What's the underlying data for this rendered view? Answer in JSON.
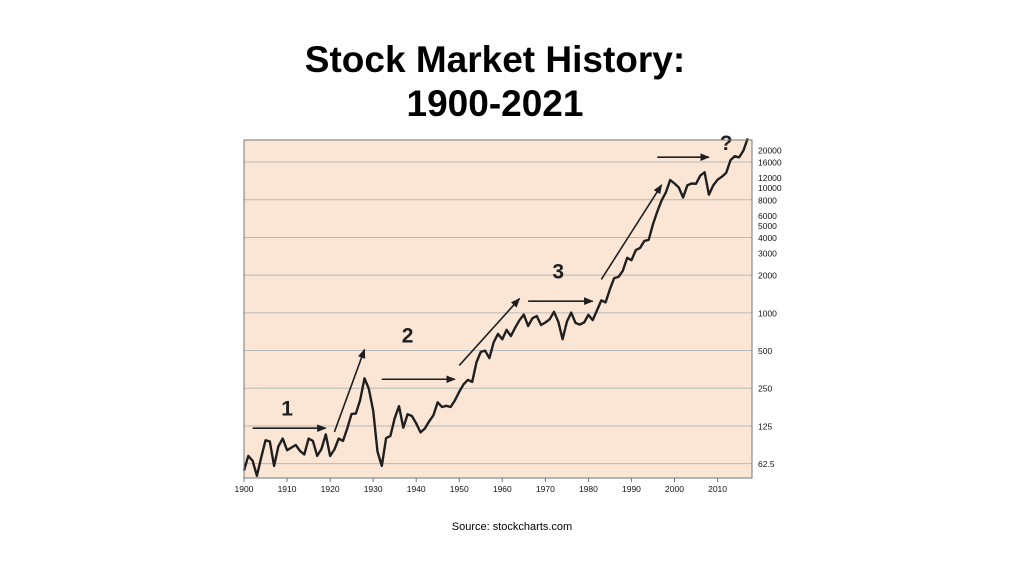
{
  "slide": {
    "title_line1": "Stock Market History:",
    "title_line2": "1900-2021",
    "source": "Source: stockcharts.com"
  },
  "colors": {
    "plot_background": "#fbe6d6",
    "gridline": "#b8b8b8",
    "series_line": "#1f1f1f",
    "frame": "#777777"
  },
  "chart_data": {
    "type": "line",
    "title": "",
    "xlabel": "",
    "ylabel": "",
    "y_scale": "log",
    "grid": true,
    "xlim": [
      1900,
      2018
    ],
    "ylim": [
      48,
      24000
    ],
    "x_ticks": [
      1900,
      1910,
      1920,
      1930,
      1940,
      1950,
      1960,
      1970,
      1980,
      1990,
      2000,
      2010
    ],
    "x_tick_labels": [
      "1900",
      "1910",
      "1920",
      "1930",
      "1940",
      "1950",
      "1960",
      "1970",
      "1980",
      "1990",
      "2000",
      "2010"
    ],
    "y_ticks": [
      62.5,
      125,
      250,
      500,
      1000,
      2000,
      3000,
      4000,
      5000,
      6000,
      8000,
      10000,
      12000,
      16000,
      20000
    ],
    "y_tick_labels": [
      "62.5",
      "125",
      "250",
      "500",
      "1000",
      "2000",
      "3000",
      "4000",
      "5000",
      "6000",
      "8000",
      "10000",
      "12000",
      "16000",
      "20000"
    ],
    "gridlines_y": [
      62.5,
      125,
      250,
      500,
      1000,
      2000,
      4000,
      8000,
      16000
    ],
    "series": [
      {
        "values": [
          [
            1900,
            55
          ],
          [
            1901,
            72
          ],
          [
            1902,
            66
          ],
          [
            1903,
            50
          ],
          [
            1904,
            70
          ],
          [
            1905,
            96
          ],
          [
            1906,
            94
          ],
          [
            1907,
            60
          ],
          [
            1908,
            86
          ],
          [
            1909,
            99
          ],
          [
            1910,
            80
          ],
          [
            1911,
            84
          ],
          [
            1912,
            88
          ],
          [
            1913,
            79
          ],
          [
            1914,
            74
          ],
          [
            1915,
            99
          ],
          [
            1916,
            95
          ],
          [
            1917,
            72
          ],
          [
            1918,
            82
          ],
          [
            1919,
            107
          ],
          [
            1920,
            72
          ],
          [
            1921,
            81
          ],
          [
            1922,
            99
          ],
          [
            1923,
            95
          ],
          [
            1924,
            120
          ],
          [
            1925,
            156
          ],
          [
            1926,
            157
          ],
          [
            1927,
            202
          ],
          [
            1928,
            300
          ],
          [
            1929,
            248
          ],
          [
            1930,
            165
          ],
          [
            1931,
            78
          ],
          [
            1932,
            60
          ],
          [
            1933,
            100
          ],
          [
            1934,
            104
          ],
          [
            1935,
            144
          ],
          [
            1936,
            180
          ],
          [
            1937,
            121
          ],
          [
            1938,
            155
          ],
          [
            1939,
            150
          ],
          [
            1940,
            131
          ],
          [
            1941,
            111
          ],
          [
            1942,
            119
          ],
          [
            1943,
            136
          ],
          [
            1944,
            152
          ],
          [
            1945,
            193
          ],
          [
            1946,
            177
          ],
          [
            1947,
            181
          ],
          [
            1948,
            177
          ],
          [
            1949,
            200
          ],
          [
            1950,
            235
          ],
          [
            1951,
            269
          ],
          [
            1952,
            292
          ],
          [
            1953,
            281
          ],
          [
            1954,
            404
          ],
          [
            1955,
            488
          ],
          [
            1956,
            499
          ],
          [
            1957,
            435
          ],
          [
            1958,
            583
          ],
          [
            1959,
            679
          ],
          [
            1960,
            615
          ],
          [
            1961,
            731
          ],
          [
            1962,
            652
          ],
          [
            1963,
            762
          ],
          [
            1964,
            874
          ],
          [
            1965,
            969
          ],
          [
            1966,
            785
          ],
          [
            1967,
            905
          ],
          [
            1968,
            943
          ],
          [
            1969,
            800
          ],
          [
            1970,
            838
          ],
          [
            1971,
            890
          ],
          [
            1972,
            1020
          ],
          [
            1973,
            850
          ],
          [
            1974,
            616
          ],
          [
            1975,
            852
          ],
          [
            1976,
            1004
          ],
          [
            1977,
            831
          ],
          [
            1978,
            805
          ],
          [
            1979,
            838
          ],
          [
            1980,
            963
          ],
          [
            1981,
            875
          ],
          [
            1982,
            1046
          ],
          [
            1983,
            1258
          ],
          [
            1984,
            1211
          ],
          [
            1985,
            1546
          ],
          [
            1986,
            1895
          ],
          [
            1987,
            1938
          ],
          [
            1988,
            2168
          ],
          [
            1989,
            2753
          ],
          [
            1990,
            2633
          ],
          [
            1991,
            3168
          ],
          [
            1992,
            3301
          ],
          [
            1993,
            3754
          ],
          [
            1994,
            3834
          ],
          [
            1995,
            5117
          ],
          [
            1996,
            6448
          ],
          [
            1997,
            7908
          ],
          [
            1998,
            9181
          ],
          [
            1999,
            11497
          ],
          [
            2000,
            10787
          ],
          [
            2001,
            10021
          ],
          [
            2002,
            8341
          ],
          [
            2003,
            10453
          ],
          [
            2004,
            10783
          ],
          [
            2005,
            10717
          ],
          [
            2006,
            12463
          ],
          [
            2007,
            13264
          ],
          [
            2008,
            8776
          ],
          [
            2009,
            10428
          ],
          [
            2010,
            11577
          ],
          [
            2011,
            12217
          ],
          [
            2012,
            13104
          ],
          [
            2013,
            16576
          ],
          [
            2014,
            17823
          ],
          [
            2015,
            17425
          ],
          [
            2016,
            19762
          ],
          [
            2017,
            24719
          ]
        ]
      }
    ],
    "annotations": [
      {
        "label": "1",
        "kind": "flat",
        "from": [
          1902,
          120
        ],
        "to": [
          1919,
          120
        ],
        "label_at": [
          1910,
          152
        ]
      },
      {
        "label": "",
        "kind": "rise",
        "from": [
          1921,
          112
        ],
        "to": [
          1928,
          510
        ]
      },
      {
        "label": "2",
        "kind": "flat",
        "from": [
          1932,
          295
        ],
        "to": [
          1949,
          295
        ],
        "label_at": [
          1938,
          580
        ]
      },
      {
        "label": "",
        "kind": "rise",
        "from": [
          1950,
          380
        ],
        "to": [
          1964,
          1300
        ]
      },
      {
        "label": "3",
        "kind": "flat",
        "from": [
          1966,
          1240
        ],
        "to": [
          1981,
          1240
        ],
        "label_at": [
          1973,
          1880
        ]
      },
      {
        "label": "",
        "kind": "rise",
        "from": [
          1983,
          1850
        ],
        "to": [
          1997,
          10500
        ]
      },
      {
        "label": "?",
        "kind": "flat",
        "from": [
          1996,
          17500
        ],
        "to": [
          2008,
          17500
        ],
        "label_at": [
          2012,
          20000
        ]
      }
    ]
  }
}
